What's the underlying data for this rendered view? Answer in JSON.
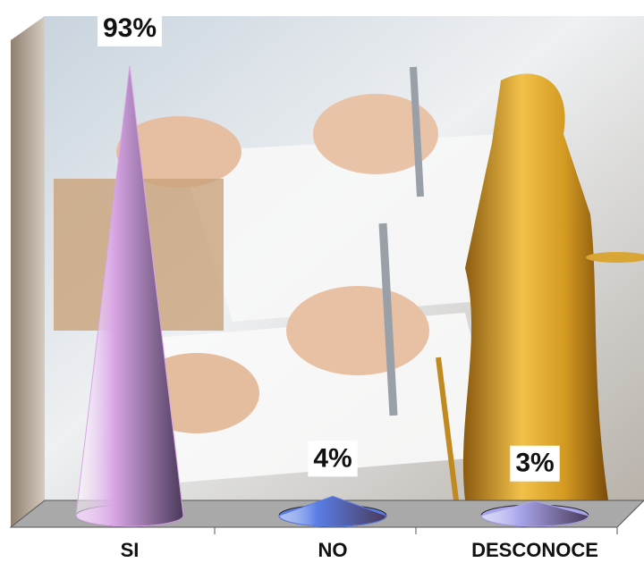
{
  "chart_data": {
    "type": "cone",
    "categories": [
      "SI",
      "NO",
      "DESCONOCE"
    ],
    "values": [
      93,
      4,
      3
    ],
    "value_labels": [
      "93%",
      "4%",
      "3%"
    ],
    "colors": [
      "#d9a6e6",
      "#5a7ee6",
      "#a9a6ec"
    ]
  }
}
